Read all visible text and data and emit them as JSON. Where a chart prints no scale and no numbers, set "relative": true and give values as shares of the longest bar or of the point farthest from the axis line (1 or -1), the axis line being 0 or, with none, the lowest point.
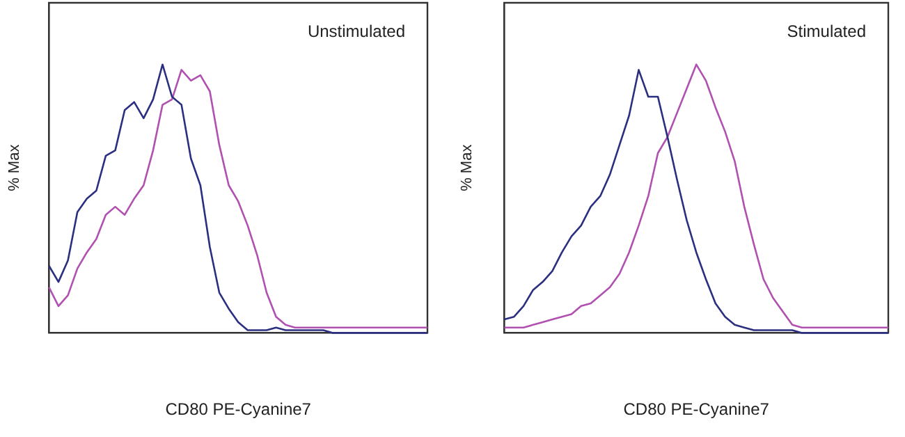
{
  "chart_data": [
    {
      "type": "line",
      "relative": true,
      "xlabel": "CD80 PE-Cyanine7",
      "ylabel": "% Max",
      "annotations": [
        "Unstimulated"
      ],
      "legend": false,
      "grid": false,
      "marker": "none",
      "categories": [
        null,
        null,
        null,
        null,
        null,
        null,
        null,
        null,
        null,
        null,
        null,
        null,
        null,
        null,
        null,
        null,
        null,
        null,
        null,
        null,
        null,
        null,
        null,
        null,
        null,
        null,
        null,
        null,
        null,
        null,
        null,
        null,
        null,
        null,
        null,
        null,
        null,
        null,
        null,
        null,
        null
      ],
      "series": [
        {
          "color": "#2b2f80",
          "values": [
            0.25,
            0.19,
            0.27,
            0.45,
            0.5,
            0.53,
            0.66,
            0.68,
            0.83,
            0.86,
            0.8,
            0.87,
            1,
            0.88,
            0.85,
            0.65,
            0.55,
            0.32,
            0.15,
            0.09,
            0.04,
            0.01,
            0.01,
            0.01,
            0.02,
            0.01,
            0.01,
            0.01,
            0.01,
            0.01,
            0,
            0,
            0,
            0,
            0,
            0,
            0,
            0,
            0,
            0,
            0
          ]
        },
        {
          "color": "#b050b0",
          "values": [
            0.17,
            0.1,
            0.14,
            0.24,
            0.3,
            0.35,
            0.44,
            0.47,
            0.44,
            0.5,
            0.55,
            0.68,
            0.85,
            0.87,
            0.98,
            0.94,
            0.96,
            0.9,
            0.7,
            0.55,
            0.49,
            0.4,
            0.29,
            0.15,
            0.06,
            0.03,
            0.02,
            0.02,
            0.02,
            0.02,
            0.02,
            0.02,
            0.02,
            0.02,
            0.02,
            0.02,
            0.02,
            0.02,
            0.02,
            0.02,
            0.02
          ]
        }
      ]
    },
    {
      "type": "line",
      "relative": true,
      "xlabel": "CD80 PE-Cyanine7",
      "ylabel": "% Max",
      "annotations": [
        "Stimulated"
      ],
      "legend": false,
      "grid": false,
      "marker": "none",
      "categories": [
        null,
        null,
        null,
        null,
        null,
        null,
        null,
        null,
        null,
        null,
        null,
        null,
        null,
        null,
        null,
        null,
        null,
        null,
        null,
        null,
        null,
        null,
        null,
        null,
        null,
        null,
        null,
        null,
        null,
        null,
        null,
        null,
        null,
        null,
        null,
        null,
        null,
        null,
        null,
        null,
        null
      ],
      "series": [
        {
          "color": "#2b2f80",
          "values": [
            0.05,
            0.06,
            0.1,
            0.16,
            0.19,
            0.23,
            0.3,
            0.36,
            0.4,
            0.47,
            0.51,
            0.59,
            0.7,
            0.81,
            0.98,
            0.88,
            0.88,
            0.73,
            0.57,
            0.42,
            0.3,
            0.2,
            0.11,
            0.06,
            0.03,
            0.02,
            0.01,
            0.01,
            0.01,
            0.01,
            0.01,
            0,
            0,
            0,
            0,
            0,
            0,
            0,
            0,
            0,
            0
          ]
        },
        {
          "color": "#b050b0",
          "values": [
            0.02,
            0.02,
            0.02,
            0.03,
            0.04,
            0.05,
            0.06,
            0.07,
            0.1,
            0.11,
            0.14,
            0.17,
            0.22,
            0.3,
            0.4,
            0.51,
            0.67,
            0.73,
            0.82,
            0.91,
            1,
            0.94,
            0.84,
            0.75,
            0.64,
            0.47,
            0.33,
            0.2,
            0.13,
            0.08,
            0.03,
            0.02,
            0.02,
            0.02,
            0.02,
            0.02,
            0.02,
            0.02,
            0.02,
            0.02,
            0.02
          ]
        }
      ]
    }
  ]
}
